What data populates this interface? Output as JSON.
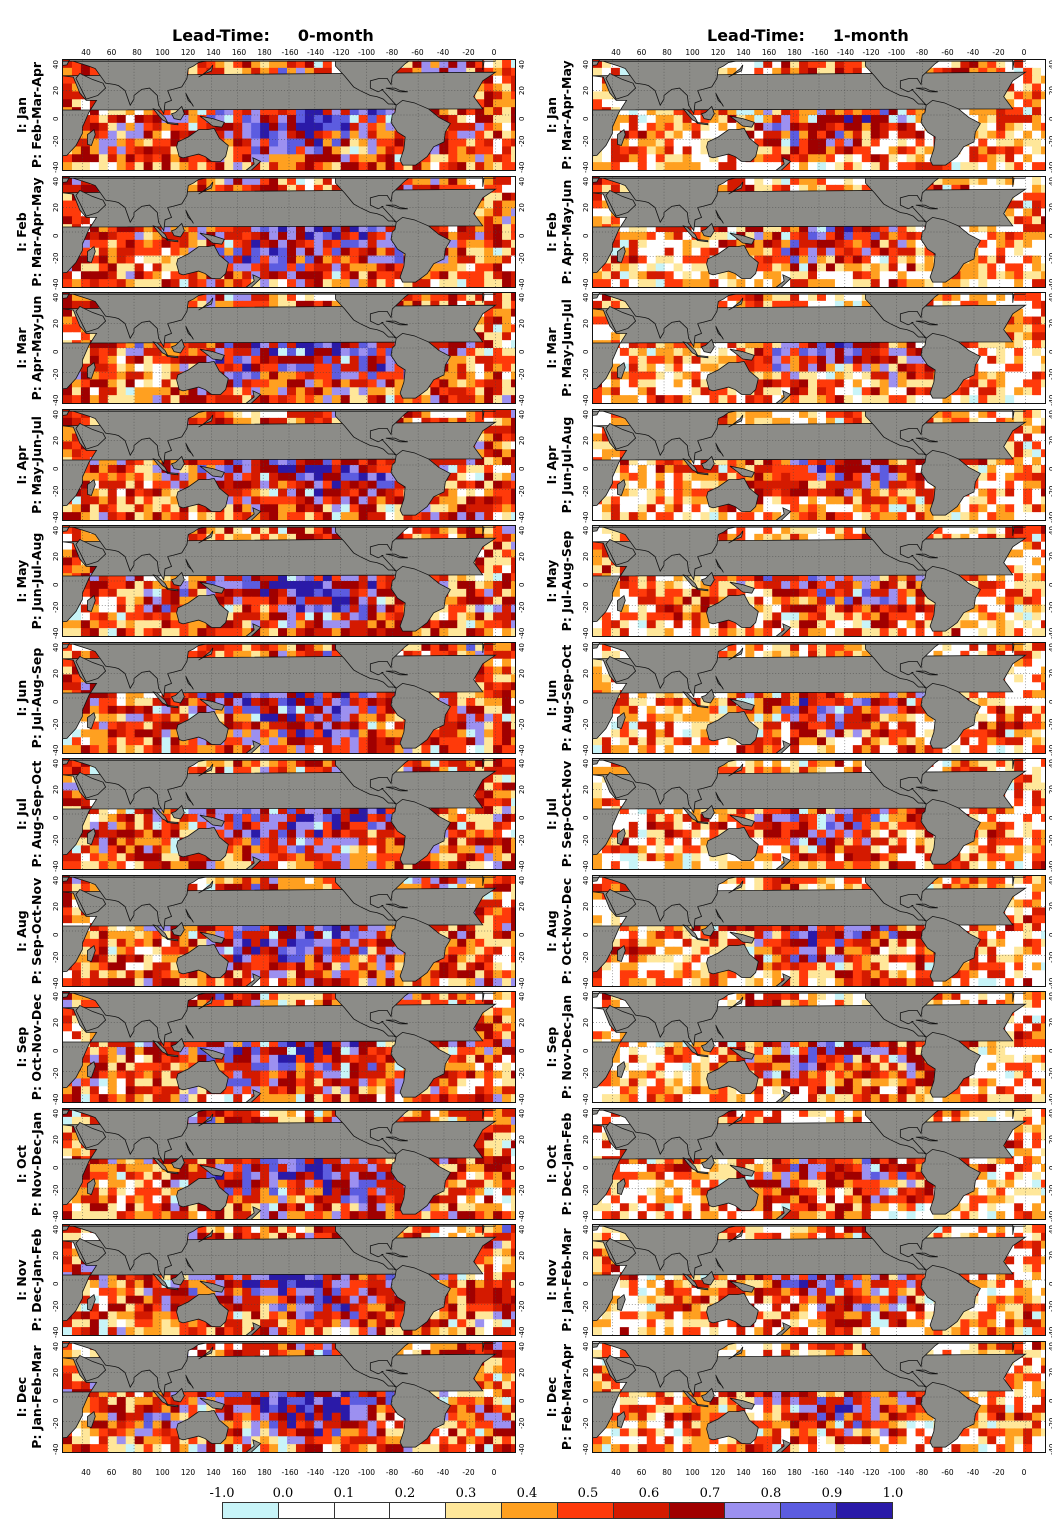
{
  "columns": [
    {
      "title_label": "Lead-Time:",
      "title_value": "0-month"
    },
    {
      "title_label": "Lead-Time:",
      "title_value": "1-month"
    }
  ],
  "rows": [
    {
      "col0": {
        "init": "I: Jan",
        "pred": "P: Feb-Mar-Apr"
      },
      "col1": {
        "init": "I: Jan",
        "pred": "P: Mar-Apr-May"
      }
    },
    {
      "col0": {
        "init": "I: Feb",
        "pred": "P: Mar-Apr-May"
      },
      "col1": {
        "init": "I: Feb",
        "pred": "P: Apr-May-Jun"
      }
    },
    {
      "col0": {
        "init": "I: Mar",
        "pred": "P: Apr-May-Jun"
      },
      "col1": {
        "init": "I: Mar",
        "pred": "P: May-Jun-Jul"
      }
    },
    {
      "col0": {
        "init": "I: Apr",
        "pred": "P: May-Jun-Jul"
      },
      "col1": {
        "init": "I: Apr",
        "pred": "P: Jun-Jul-Aug"
      }
    },
    {
      "col0": {
        "init": "I: May",
        "pred": "P: Jun-Jul-Aug"
      },
      "col1": {
        "init": "I: May",
        "pred": "P: Jul-Aug-Sep"
      }
    },
    {
      "col0": {
        "init": "I: Jun",
        "pred": "P: Jul-Aug-Sep"
      },
      "col1": {
        "init": "I: Jun",
        "pred": "P: Aug-Sep-Oct"
      }
    },
    {
      "col0": {
        "init": "I: Jul",
        "pred": "P: Aug-Sep-Oct"
      },
      "col1": {
        "init": "I: Jul",
        "pred": "P: Sep-Oct-Nov"
      }
    },
    {
      "col0": {
        "init": "I: Aug",
        "pred": "P: Sep-Oct-Nov"
      },
      "col1": {
        "init": "I: Aug",
        "pred": "P: Oct-Nov-Dec"
      }
    },
    {
      "col0": {
        "init": "I: Sep",
        "pred": "P: Oct-Nov-Dec"
      },
      "col1": {
        "init": "I: Sep",
        "pred": "P: Nov-Dec-Jan"
      }
    },
    {
      "col0": {
        "init": "I: Oct",
        "pred": "P: Nov-Dec-Jan"
      },
      "col1": {
        "init": "I: Oct",
        "pred": "P: Dec-Jan-Feb"
      }
    },
    {
      "col0": {
        "init": "I: Nov",
        "pred": "P: Dec-Jan-Feb"
      },
      "col1": {
        "init": "I: Nov",
        "pred": "P: Jan-Feb-Mar"
      }
    },
    {
      "col0": {
        "init": "I: Dec",
        "pred": "P: Jan-Feb-Mar"
      },
      "col1": {
        "init": "I: Dec",
        "pred": "P: Feb-Mar-Apr"
      }
    }
  ],
  "lon_ticks": [
    "40",
    "60",
    "80",
    "100",
    "120",
    "140",
    "160",
    "180",
    "-160",
    "-140",
    "-120",
    "-100",
    "-80",
    "-60",
    "-40",
    "-20",
    "0"
  ],
  "lat_ticks": [
    "40",
    "20",
    "0",
    "-20",
    "-40"
  ],
  "colorbar": {
    "tick_labels": [
      "-1.0",
      "0.0",
      "0.1",
      "0.2",
      "0.3",
      "0.4",
      "0.5",
      "0.6",
      "0.7",
      "0.8",
      "0.9",
      "1.0"
    ],
    "colors": [
      "#c8f4f8",
      "#ffffff",
      "#ffffff",
      "#ffffff",
      "#ffe79a",
      "#ffa020",
      "#ff3a0a",
      "#d41a00",
      "#a00000",
      "#9c90f0",
      "#5c5ce0",
      "#2a1aa8"
    ]
  },
  "map_colors": {
    "land": "#8c8c88",
    "grid": "#444444",
    "coast": "#111111"
  }
}
